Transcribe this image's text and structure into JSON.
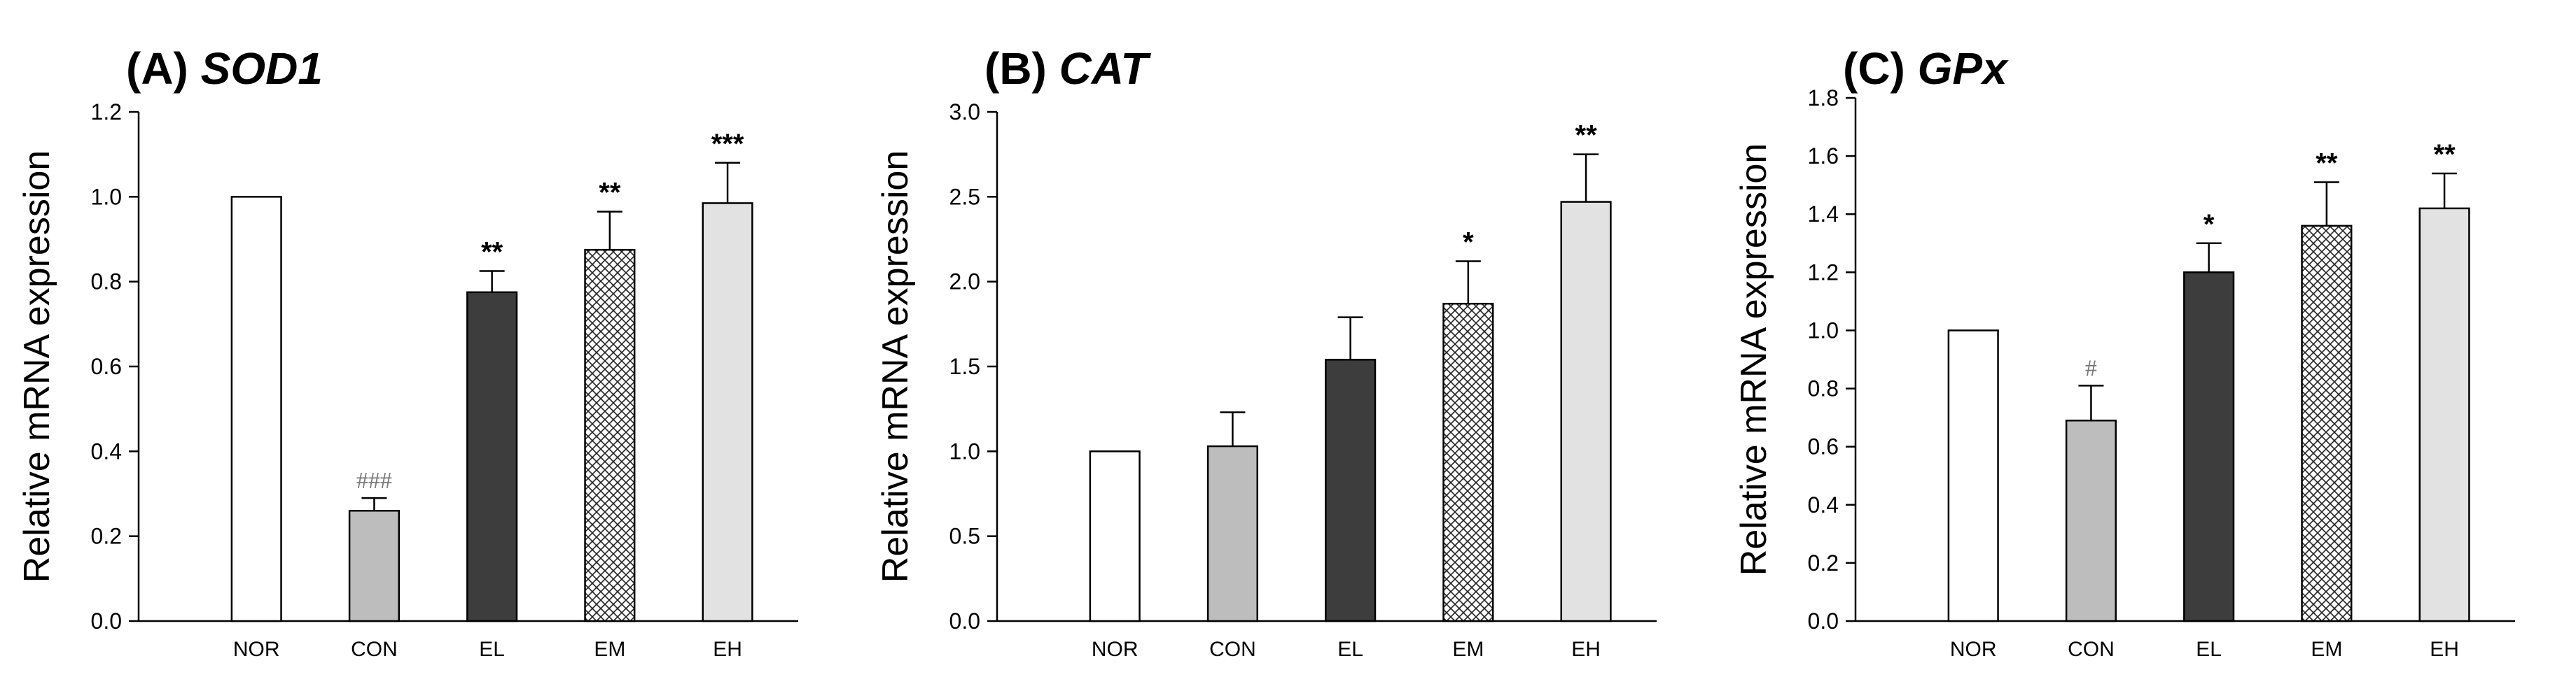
{
  "chart_data": [
    {
      "type": "bar",
      "title_prefix": "(A)",
      "title_gene": "SOD1",
      "ylabel": "Relative mRNA expression",
      "xlabel": "",
      "categories": [
        "NOR",
        "CON",
        "EL",
        "EM",
        "EH"
      ],
      "values": [
        1.0,
        0.26,
        0.775,
        0.875,
        0.985
      ],
      "errors": [
        0.0,
        0.03,
        0.05,
        0.09,
        0.095
      ],
      "annotations": [
        "",
        "###",
        "**",
        "**",
        "***"
      ],
      "ylim": [
        0,
        1.2
      ],
      "yticks": [
        "0.0",
        "0.2",
        "0.4",
        "0.6",
        "0.8",
        "1.0",
        "1.2"
      ]
    },
    {
      "type": "bar",
      "title_prefix": "(B)",
      "title_gene": "CAT",
      "ylabel": "Relative mRNA expression",
      "xlabel": "",
      "categories": [
        "NOR",
        "CON",
        "EL",
        "EM",
        "EH"
      ],
      "values": [
        1.0,
        1.03,
        1.54,
        1.87,
        2.47
      ],
      "errors": [
        0.0,
        0.2,
        0.25,
        0.25,
        0.28
      ],
      "annotations": [
        "",
        "",
        "",
        "*",
        "**"
      ],
      "ylim": [
        0,
        3.0
      ],
      "yticks": [
        "0.0",
        "0.5",
        "1.0",
        "1.5",
        "2.0",
        "2.5",
        "3.0"
      ]
    },
    {
      "type": "bar",
      "title_prefix": "(C)",
      "title_gene": "GPx",
      "ylabel": "Relative mRNA expression",
      "xlabel": "",
      "categories": [
        "NOR",
        "CON",
        "EL",
        "EM",
        "EH"
      ],
      "values": [
        1.0,
        0.69,
        1.2,
        1.36,
        1.42
      ],
      "errors": [
        0.0,
        0.12,
        0.1,
        0.15,
        0.12
      ],
      "annotations": [
        "",
        "#",
        "*",
        "**",
        "**"
      ],
      "ylim": [
        0,
        1.8
      ],
      "yticks": [
        "0.0",
        "0.2",
        "0.4",
        "0.6",
        "0.8",
        "1.0",
        "1.2",
        "1.4",
        "1.6",
        "1.8"
      ]
    }
  ],
  "bar_styles": [
    {
      "fill": "#ffffff",
      "pattern": "none"
    },
    {
      "fill": "#bdbdbd",
      "pattern": "none"
    },
    {
      "fill": "#3d3d3d",
      "pattern": "none"
    },
    {
      "fill": "#ffffff",
      "pattern": "crosshatch"
    },
    {
      "fill": "#e2e2e2",
      "pattern": "none"
    }
  ]
}
